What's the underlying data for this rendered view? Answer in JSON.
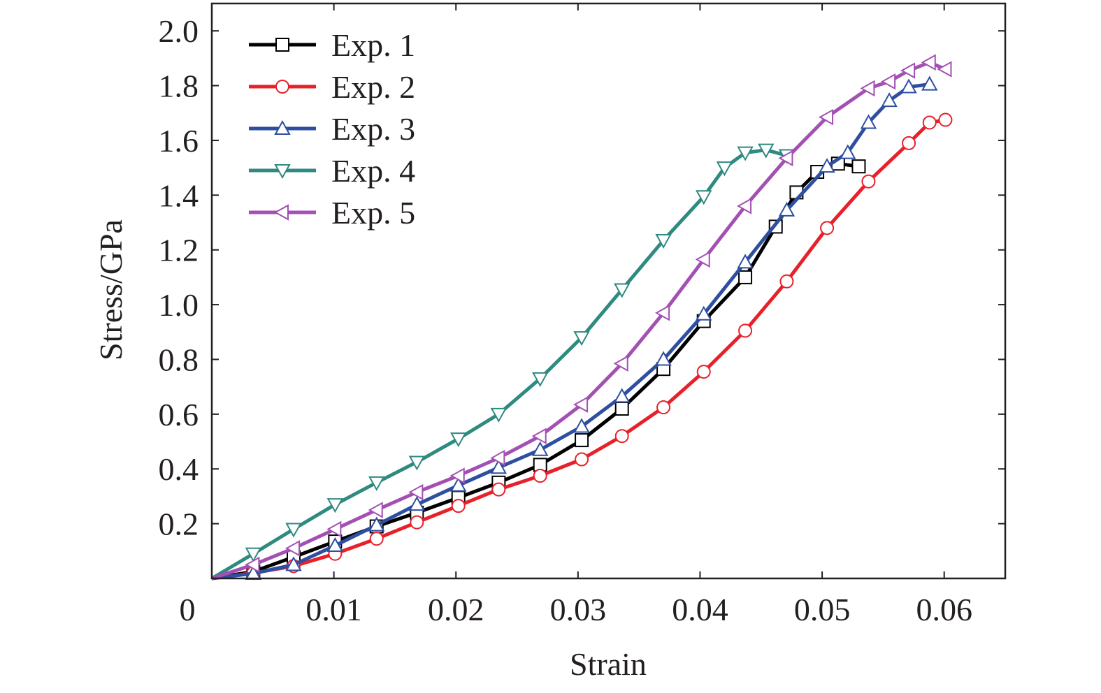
{
  "chart_data": {
    "type": "line",
    "xlabel": "Strain",
    "ylabel": "Stress/GPa",
    "xlim": [
      0,
      0.065
    ],
    "ylim": [
      0,
      2.1
    ],
    "x_ticks": [
      0,
      0.01,
      0.02,
      0.03,
      0.04,
      0.05,
      0.06
    ],
    "x_tick_labels": [
      "0",
      "0.01",
      "0.02",
      "0.03",
      "0.04",
      "0.05",
      "0.06"
    ],
    "y_ticks": [
      0.2,
      0.4,
      0.6,
      0.8,
      1.0,
      1.2,
      1.4,
      1.6,
      1.8,
      2.0
    ],
    "y_tick_labels": [
      "0.2",
      "0.4",
      "0.6",
      "0.8",
      "1.0",
      "1.2",
      "1.4",
      "1.6",
      "1.8",
      "2.0"
    ],
    "grid": false,
    "legend_position": "top-left",
    "series": [
      {
        "name": "Exp. 1",
        "color": "#000000",
        "marker": "square",
        "x": [
          0,
          0.0034,
          0.0067,
          0.0101,
          0.0135,
          0.0168,
          0.0202,
          0.0235,
          0.0269,
          0.0303,
          0.0336,
          0.037,
          0.0403,
          0.0437,
          0.0462,
          0.0479,
          0.0496,
          0.0513,
          0.053
        ],
        "y": [
          0,
          0.025,
          0.078,
          0.135,
          0.19,
          0.24,
          0.295,
          0.35,
          0.415,
          0.505,
          0.62,
          0.765,
          0.94,
          1.1,
          1.285,
          1.41,
          1.485,
          1.515,
          1.505
        ]
      },
      {
        "name": "Exp. 2",
        "color": "#e8202a",
        "marker": "circle",
        "x": [
          0,
          0.0034,
          0.0067,
          0.0101,
          0.0135,
          0.0168,
          0.0202,
          0.0235,
          0.0269,
          0.0303,
          0.0336,
          0.037,
          0.0403,
          0.0437,
          0.0471,
          0.0504,
          0.0538,
          0.0571,
          0.0588,
          0.0601
        ],
        "y": [
          0,
          0.02,
          0.045,
          0.09,
          0.145,
          0.205,
          0.265,
          0.325,
          0.375,
          0.435,
          0.52,
          0.625,
          0.755,
          0.905,
          1.085,
          1.28,
          1.45,
          1.59,
          1.665,
          1.675
        ]
      },
      {
        "name": "Exp. 3",
        "color": "#2e4ea0",
        "marker": "triangle-up",
        "x": [
          0,
          0.0034,
          0.0067,
          0.0101,
          0.0135,
          0.0168,
          0.0202,
          0.0235,
          0.0269,
          0.0303,
          0.0336,
          0.037,
          0.0403,
          0.0437,
          0.0471,
          0.0504,
          0.0521,
          0.0538,
          0.0555,
          0.0571,
          0.0588
        ],
        "y": [
          0,
          0.018,
          0.05,
          0.12,
          0.195,
          0.27,
          0.34,
          0.405,
          0.47,
          0.555,
          0.665,
          0.8,
          0.965,
          1.155,
          1.345,
          1.505,
          1.555,
          1.665,
          1.745,
          1.795,
          1.805
        ]
      },
      {
        "name": "Exp. 4",
        "color": "#2f8a80",
        "marker": "triangle-down",
        "x": [
          0,
          0.0034,
          0.0067,
          0.0101,
          0.0135,
          0.0168,
          0.0202,
          0.0235,
          0.0269,
          0.0303,
          0.0336,
          0.037,
          0.0403,
          0.042,
          0.0437,
          0.0454,
          0.0471
        ],
        "y": [
          0,
          0.09,
          0.18,
          0.27,
          0.35,
          0.425,
          0.51,
          0.6,
          0.73,
          0.88,
          1.055,
          1.235,
          1.395,
          1.5,
          1.555,
          1.565,
          1.545
        ]
      },
      {
        "name": "Exp. 5",
        "color": "#a34fb3",
        "marker": "triangle-left",
        "x": [
          0,
          0.0034,
          0.0067,
          0.0101,
          0.0135,
          0.0168,
          0.0202,
          0.0235,
          0.0269,
          0.0303,
          0.0336,
          0.037,
          0.0403,
          0.0437,
          0.0471,
          0.0504,
          0.0538,
          0.0555,
          0.0571,
          0.0588,
          0.0601
        ],
        "y": [
          0,
          0.05,
          0.11,
          0.18,
          0.25,
          0.315,
          0.375,
          0.44,
          0.52,
          0.635,
          0.785,
          0.97,
          1.165,
          1.36,
          1.535,
          1.685,
          1.79,
          1.815,
          1.855,
          1.885,
          1.86
        ]
      }
    ]
  }
}
